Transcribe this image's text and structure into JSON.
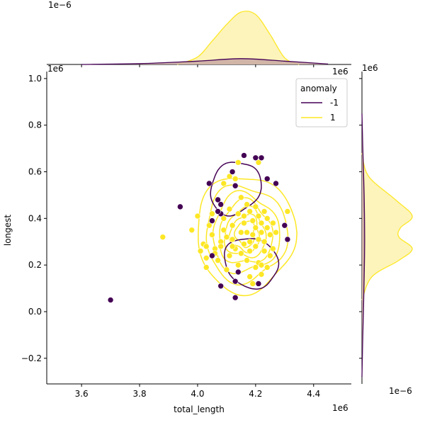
{
  "chart_data": {
    "type": "scatter",
    "kind": "jointplot with kde contours and marginal kde",
    "xlabel": "total_length",
    "ylabel": "longest",
    "x_offset_label": "1e6",
    "y_offset_label": "1e6",
    "top_marginal_offset_label": "1e−6",
    "right_marginal_offset_label": "1e−6",
    "right_marginal_axis_offset_label": "1e6",
    "top_marginal_axis_offset_label": "1e6",
    "xlim": [
      3.48,
      4.53
    ],
    "ylim": [
      -0.31,
      1.03
    ],
    "x_ticks": [
      3.6,
      3.8,
      4.0,
      4.2,
      4.4
    ],
    "x_tick_labels": [
      "3.6",
      "3.8",
      "4.0",
      "4.2",
      "4.4"
    ],
    "y_ticks": [
      -0.2,
      0.0,
      0.2,
      0.4,
      0.6,
      0.8,
      1.0
    ],
    "y_tick_labels": [
      "−0.2",
      "0.0",
      "0.2",
      "0.4",
      "0.6",
      "0.8",
      "1.0"
    ],
    "grid": false,
    "legend": {
      "title": "anomaly",
      "placement": "top-right",
      "entries": [
        {
          "label": "-1",
          "color": "#440154"
        },
        {
          "label": "1",
          "color": "#fde725"
        }
      ]
    },
    "series": [
      {
        "name": "-1",
        "color": "#440154",
        "points": [
          [
            3.7,
            0.05
          ],
          [
            3.94,
            0.45
          ],
          [
            4.04,
            0.55
          ],
          [
            4.05,
            0.39
          ],
          [
            4.05,
            0.24
          ],
          [
            4.07,
            0.48
          ],
          [
            4.08,
            0.46
          ],
          [
            4.08,
            0.42
          ],
          [
            4.07,
            0.43
          ],
          [
            4.08,
            0.11
          ],
          [
            4.12,
            0.6
          ],
          [
            4.13,
            0.54
          ],
          [
            4.14,
            0.17
          ],
          [
            4.13,
            0.13
          ],
          [
            4.13,
            0.06
          ],
          [
            4.16,
            0.67
          ],
          [
            4.2,
            0.66
          ],
          [
            4.22,
            0.66
          ],
          [
            4.21,
            0.12
          ],
          [
            4.24,
            0.57
          ],
          [
            4.27,
            0.55
          ],
          [
            4.3,
            0.37
          ],
          [
            4.31,
            0.31
          ]
        ]
      },
      {
        "name": "1",
        "color": "#fde725",
        "points": [
          [
            3.88,
            0.32
          ],
          [
            3.98,
            0.35
          ],
          [
            4.0,
            0.41
          ],
          [
            4.01,
            0.26
          ],
          [
            4.02,
            0.29
          ],
          [
            4.03,
            0.23
          ],
          [
            4.03,
            0.19
          ],
          [
            4.04,
            0.37
          ],
          [
            4.05,
            0.42
          ],
          [
            4.05,
            0.33
          ],
          [
            4.06,
            0.27
          ],
          [
            4.06,
            0.25
          ],
          [
            4.07,
            0.22
          ],
          [
            4.08,
            0.3
          ],
          [
            4.08,
            0.28
          ],
          [
            4.09,
            0.35
          ],
          [
            4.09,
            0.4
          ],
          [
            4.1,
            0.32
          ],
          [
            4.1,
            0.18
          ],
          [
            4.11,
            0.44
          ],
          [
            4.11,
            0.24
          ],
          [
            4.12,
            0.37
          ],
          [
            4.12,
            0.31
          ],
          [
            4.13,
            0.57
          ],
          [
            4.13,
            0.27
          ],
          [
            4.14,
            0.42
          ],
          [
            4.14,
            0.2
          ],
          [
            4.14,
            0.64
          ],
          [
            4.15,
            0.34
          ],
          [
            4.15,
            0.25
          ],
          [
            4.16,
            0.41
          ],
          [
            4.16,
            0.29
          ],
          [
            4.16,
            0.38
          ],
          [
            4.17,
            0.46
          ],
          [
            4.17,
            0.34
          ],
          [
            4.17,
            0.22
          ],
          [
            4.18,
            0.43
          ],
          [
            4.18,
            0.3
          ],
          [
            4.18,
            0.26
          ],
          [
            4.19,
            0.39
          ],
          [
            4.19,
            0.33
          ],
          [
            4.19,
            0.12
          ],
          [
            4.2,
            0.45
          ],
          [
            4.2,
            0.36
          ],
          [
            4.2,
            0.28
          ],
          [
            4.21,
            0.41
          ],
          [
            4.21,
            0.31
          ],
          [
            4.21,
            0.21
          ],
          [
            4.22,
            0.38
          ],
          [
            4.22,
            0.34
          ],
          [
            4.22,
            0.16
          ],
          [
            4.23,
            0.43
          ],
          [
            4.23,
            0.3
          ],
          [
            4.23,
            0.26
          ],
          [
            4.24,
            0.4
          ],
          [
            4.24,
            0.36
          ],
          [
            4.25,
            0.33
          ],
          [
            4.25,
            0.24
          ],
          [
            4.26,
            0.38
          ],
          [
            4.26,
            0.27
          ],
          [
            4.27,
            0.34
          ],
          [
            4.22,
            0.2
          ],
          [
            4.2,
            0.19
          ],
          [
            4.31,
            0.43
          ],
          [
            4.11,
            0.58
          ],
          [
            4.15,
            0.49
          ],
          [
            4.09,
            0.55
          ],
          [
            4.03,
            0.28
          ],
          [
            4.24,
            0.19
          ],
          [
            4.18,
            0.15
          ],
          [
            4.12,
            0.28
          ],
          [
            4.21,
            0.64
          ]
        ]
      }
    ],
    "top_marginal": {
      "series": [
        {
          "name": "1",
          "x": [
            3.93,
            4.0,
            4.05,
            4.1,
            4.15,
            4.2,
            4.25,
            4.3,
            4.35
          ],
          "density": [
            0.0,
            0.9,
            2.8,
            4.8,
            6.3,
            6.0,
            3.6,
            0.8,
            0.0
          ]
        },
        {
          "name": "-1",
          "x": [
            3.6,
            3.8,
            4.0,
            4.15,
            4.3,
            4.45
          ],
          "density": [
            0.0,
            0.1,
            0.4,
            0.7,
            0.4,
            0.05
          ]
        }
      ]
    },
    "right_marginal": {
      "series": [
        {
          "name": "1",
          "y": [
            0.05,
            0.15,
            0.22,
            0.27,
            0.32,
            0.36,
            0.41,
            0.48,
            0.58,
            0.68
          ],
          "density": [
            0.0,
            0.6,
            2.2,
            3.0,
            2.2,
            2.3,
            3.0,
            2.0,
            0.4,
            0.0
          ]
        },
        {
          "name": "-1",
          "y": [
            -0.28,
            -0.1,
            0.1,
            0.3,
            0.5,
            0.7,
            0.85
          ],
          "density": [
            0.0,
            0.05,
            0.12,
            0.16,
            0.13,
            0.05,
            0.0
          ]
        }
      ]
    }
  }
}
